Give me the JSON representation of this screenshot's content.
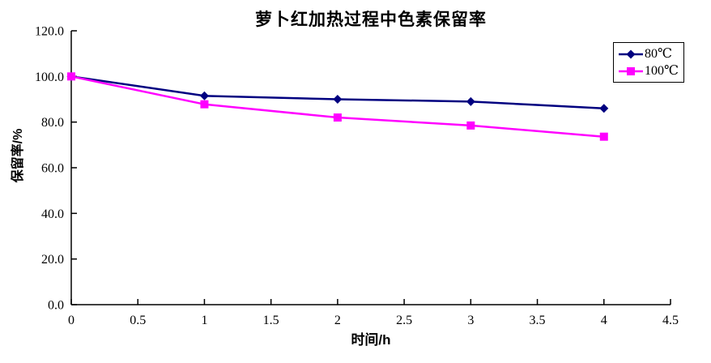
{
  "title": "萝卜红加热过程中色素保留率",
  "colors": {
    "background": "#FFFFFF",
    "axis": "#000000",
    "text": "#000000",
    "series_80c": "#000080",
    "series_100c": "#FF00FF"
  },
  "legend": {
    "items": [
      {
        "label": "80℃",
        "marker": "diamond",
        "color": "#000080"
      },
      {
        "label": "100℃",
        "marker": "square",
        "color": "#FF00FF"
      }
    ]
  },
  "chart_data": {
    "type": "line",
    "title": "萝卜红加热过程中色素保留率",
    "xlabel": "时间/h",
    "ylabel": "保留率/%",
    "x": [
      0,
      1,
      2,
      3,
      4
    ],
    "series": [
      {
        "name": "80℃",
        "color": "#000080",
        "marker": "diamond",
        "values": [
          100,
          91.5,
          90.0,
          89.0,
          86.0
        ]
      },
      {
        "name": "100℃",
        "color": "#FF00FF",
        "marker": "square",
        "values": [
          100,
          87.8,
          82.0,
          78.5,
          73.6
        ]
      }
    ],
    "xlim": [
      0,
      4.5
    ],
    "ylim": [
      0,
      120
    ],
    "x_ticks": [
      0,
      0.5,
      1,
      1.5,
      2,
      2.5,
      3,
      3.5,
      4,
      4.5
    ],
    "x_tick_labels": [
      "0",
      "0.5",
      "1",
      "1.5",
      "2",
      "2.5",
      "3",
      "3.5",
      "4",
      "4.5"
    ],
    "y_ticks": [
      0,
      20,
      40,
      60,
      80,
      100,
      120
    ],
    "y_tick_labels": [
      "0.0",
      "20.0",
      "40.0",
      "60.0",
      "80.0",
      "100.0",
      "120.0"
    ],
    "grid": false,
    "legend_position": "top-right"
  }
}
